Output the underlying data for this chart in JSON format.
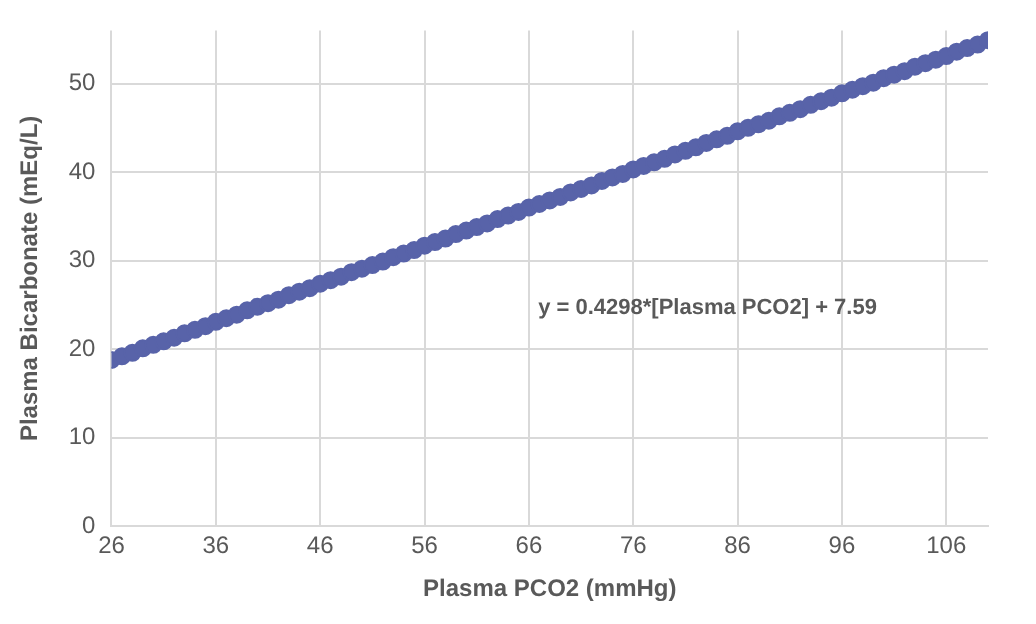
{
  "chart_data": {
    "type": "scatter",
    "xlabel": "Plasma PCO2 (mmHg)",
    "ylabel": "Plasma Bicarbonate (mEq/L)",
    "annotations": [
      "y = 0.4298*[Plasma PCO2] + 7.59"
    ],
    "x": [
      26,
      27,
      28,
      29,
      30,
      31,
      32,
      33,
      34,
      35,
      36,
      37,
      38,
      39,
      40,
      41,
      42,
      43,
      44,
      45,
      46,
      47,
      48,
      49,
      50,
      51,
      52,
      53,
      54,
      55,
      56,
      57,
      58,
      59,
      60,
      61,
      62,
      63,
      64,
      65,
      66,
      67,
      68,
      69,
      70,
      71,
      72,
      73,
      74,
      75,
      76,
      77,
      78,
      79,
      80,
      81,
      82,
      83,
      84,
      85,
      86,
      87,
      88,
      89,
      90,
      91,
      92,
      93,
      94,
      95,
      96,
      97,
      98,
      99,
      100,
      101,
      102,
      103,
      104,
      105,
      106,
      107,
      108,
      109,
      110
    ],
    "series": [
      {
        "color": "#5863a9",
        "values": [
          18.8,
          19.2,
          19.6,
          20.1,
          20.5,
          20.9,
          21.3,
          21.8,
          22.2,
          22.6,
          23.1,
          23.5,
          23.9,
          24.4,
          24.8,
          25.2,
          25.6,
          26.1,
          26.5,
          26.9,
          27.4,
          27.8,
          28.2,
          28.7,
          29.1,
          29.5,
          29.9,
          30.4,
          30.8,
          31.2,
          31.7,
          32.1,
          32.5,
          33.0,
          33.4,
          33.8,
          34.2,
          34.7,
          35.1,
          35.5,
          36.0,
          36.4,
          36.8,
          37.2,
          37.7,
          38.1,
          38.5,
          39.0,
          39.4,
          39.8,
          40.3,
          40.7,
          41.1,
          41.5,
          42.0,
          42.4,
          42.8,
          43.3,
          43.7,
          44.1,
          44.6,
          45.0,
          45.4,
          45.8,
          46.3,
          46.7,
          47.1,
          47.6,
          48.0,
          48.4,
          48.9,
          49.3,
          49.7,
          50.1,
          50.6,
          51.0,
          51.4,
          51.9,
          52.3,
          52.7,
          53.1,
          53.6,
          54.0,
          54.4,
          54.9
        ]
      }
    ],
    "xlim": [
      26,
      110
    ],
    "xticks": [
      26,
      36,
      46,
      56,
      66,
      76,
      86,
      96,
      106
    ],
    "ylim": [
      0,
      56
    ],
    "yticks": [
      0,
      10,
      20,
      30,
      40,
      50
    ],
    "grid": true,
    "marker": "circle",
    "legend": false
  }
}
